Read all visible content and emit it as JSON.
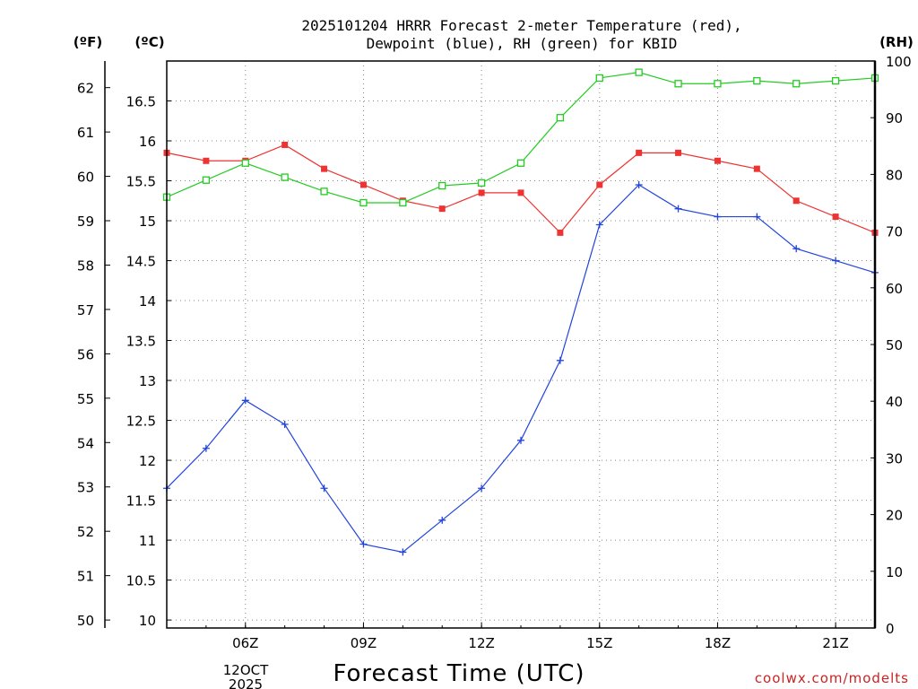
{
  "chart_data": {
    "type": "line",
    "title_line1": "2025101204 HRRR Forecast 2-meter Temperature (red),",
    "title_line2": "Dewpoint (blue), RH (green) for KBID",
    "xlabel": "Forecast Time (UTC)",
    "credit": "coolwx.com/modelts",
    "unit_f": "(ºF)",
    "unit_c": "(ºC)",
    "unit_rh": "(RH)",
    "x_hours": [
      4,
      5,
      6,
      7,
      8,
      9,
      10,
      11,
      12,
      13,
      14,
      15,
      16,
      17,
      18,
      19,
      20,
      21,
      22
    ],
    "xlim": [
      4,
      22
    ],
    "x_ticks": [
      {
        "hour": 6,
        "label": "06Z"
      },
      {
        "hour": 9,
        "label": "09Z"
      },
      {
        "hour": 12,
        "label": "12Z"
      },
      {
        "hour": 15,
        "label": "15Z"
      },
      {
        "hour": 18,
        "label": "18Z"
      },
      {
        "hour": 21,
        "label": "21Z"
      }
    ],
    "date_label_line1": "12OCT",
    "date_label_line2": "2025",
    "celsius_axis": {
      "range": [
        9.9,
        17.0
      ],
      "ticks": [
        "10",
        "10.5",
        "11",
        "11.5",
        "12",
        "12.5",
        "13",
        "13.5",
        "14",
        "14.5",
        "15",
        "15.5",
        "16",
        "16.5"
      ]
    },
    "fahrenheit_axis": {
      "ticks": [
        "50",
        "51",
        "52",
        "53",
        "54",
        "55",
        "56",
        "57",
        "58",
        "59",
        "60",
        "61",
        "62"
      ]
    },
    "rh_axis": {
      "range": [
        0,
        100
      ],
      "ticks": [
        "0",
        "10",
        "20",
        "30",
        "40",
        "50",
        "60",
        "70",
        "80",
        "90",
        "100"
      ]
    },
    "series": [
      {
        "name": "Temperature",
        "unit": "C",
        "color": "#ee3333",
        "marker": "filled-square",
        "values": [
          15.85,
          15.75,
          15.75,
          15.95,
          15.65,
          15.45,
          15.25,
          15.15,
          15.35,
          15.35,
          14.85,
          15.45,
          15.85,
          15.85,
          15.75,
          15.65,
          15.25,
          15.05,
          14.85
        ]
      },
      {
        "name": "Dewpoint",
        "unit": "C",
        "color": "#2244dd",
        "marker": "plus",
        "values": [
          11.65,
          12.15,
          12.75,
          12.45,
          11.65,
          10.95,
          10.85,
          11.25,
          11.65,
          12.25,
          13.25,
          14.95,
          15.45,
          15.15,
          15.05,
          15.05,
          14.65,
          14.5,
          14.35
        ]
      },
      {
        "name": "RH",
        "unit": "%",
        "color": "#22cc22",
        "marker": "open-square",
        "values": [
          76,
          79,
          82,
          79.5,
          77,
          75,
          75,
          78,
          78.5,
          82,
          90,
          97,
          98,
          96,
          96,
          96.5,
          96,
          96.5,
          97
        ]
      }
    ]
  }
}
